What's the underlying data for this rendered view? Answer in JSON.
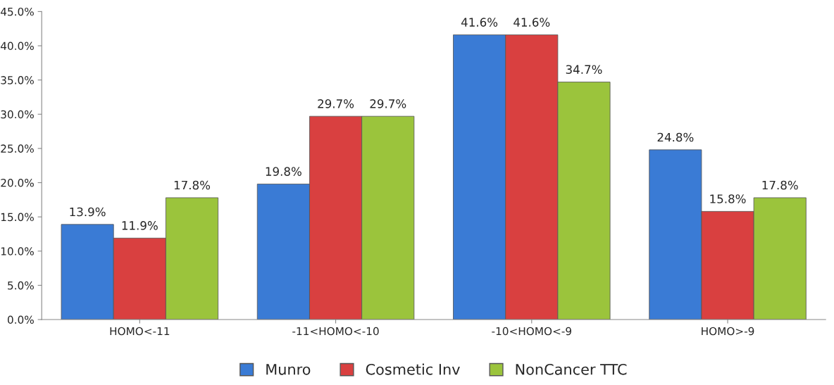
{
  "chart_data": {
    "type": "bar",
    "categories": [
      "HOMO<-11",
      "-11<HOMO<-10",
      "-10<HOMO<-9",
      "HOMO>-9"
    ],
    "series": [
      {
        "name": "Munro",
        "color": "#3a7bd5",
        "values": [
          13.9,
          19.8,
          41.6,
          24.8
        ],
        "value_labels": [
          "13.9%",
          "19.8%",
          "41.6%",
          "24.8%"
        ]
      },
      {
        "name": "Cosmetic Inv",
        "color": "#d94040",
        "values": [
          11.9,
          29.7,
          41.6,
          15.8
        ],
        "value_labels": [
          "11.9%",
          "29.7%",
          "41.6%",
          "15.8%"
        ]
      },
      {
        "name": "NonCancer TTC",
        "color": "#9bc43c",
        "values": [
          17.8,
          29.7,
          34.7,
          17.8
        ],
        "value_labels": [
          "17.8%",
          "29.7%",
          "34.7%",
          "17.8%"
        ]
      }
    ],
    "ylim": [
      0,
      45
    ],
    "yticks": [
      {
        "value": 0,
        "label": "0.0%"
      },
      {
        "value": 5,
        "label": "5.0%"
      },
      {
        "value": 10,
        "label": "10.0%"
      },
      {
        "value": 15,
        "label": "15.0%"
      },
      {
        "value": 20,
        "label": "20.0%"
      },
      {
        "value": 25,
        "label": "25.0%"
      },
      {
        "value": 30,
        "label": "30.0%"
      },
      {
        "value": 35,
        "label": "35.0%"
      },
      {
        "value": 40,
        "label": "40.0%"
      },
      {
        "value": 45,
        "label": "45.0%"
      }
    ],
    "grid": false,
    "legend": "bottom"
  }
}
